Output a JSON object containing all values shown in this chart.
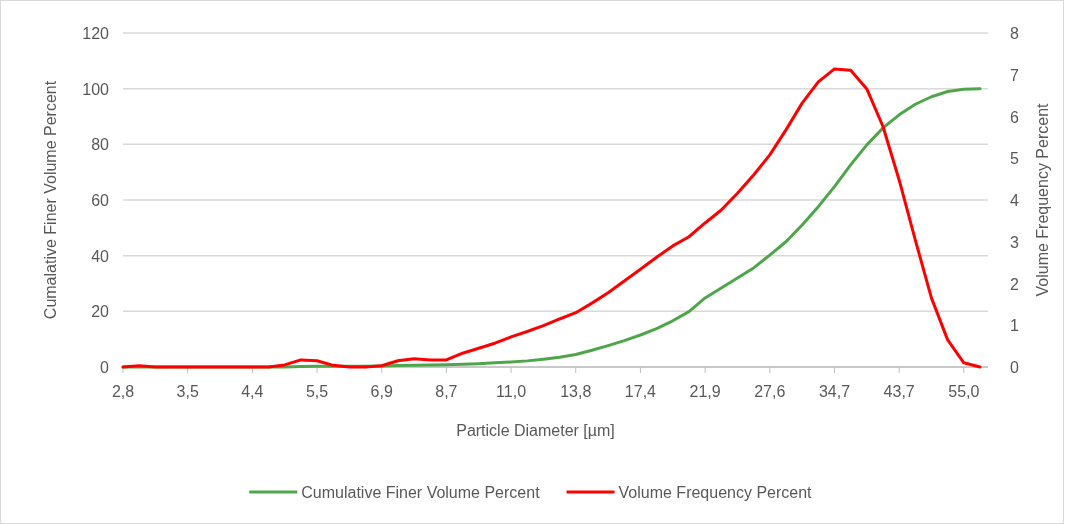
{
  "chart_data": {
    "type": "line",
    "xlabel": "Particle Diameter [µm]",
    "ylabel": "Cumalative Finer Volume Percent",
    "y2label": "Volume Frequency Percent",
    "categories": [
      "2,8",
      null,
      null,
      null,
      "3,5",
      null,
      null,
      null,
      "4,4",
      null,
      null,
      null,
      "5,5",
      null,
      null,
      null,
      "6,9",
      null,
      null,
      null,
      "8,7",
      null,
      null,
      null,
      "11,0",
      null,
      null,
      null,
      "13,8",
      null,
      null,
      null,
      "17,4",
      null,
      null,
      null,
      "21,9",
      null,
      null,
      null,
      "27,6",
      null,
      null,
      null,
      "34,7",
      null,
      null,
      null,
      "43,7",
      null,
      null,
      null,
      "55,0",
      null
    ],
    "series": [
      {
        "name": "Cumulative Finer Volume Percent",
        "color": "#4ea64a",
        "values": [
          0,
          0,
          0,
          0,
          0,
          0,
          0,
          0,
          0,
          0,
          0,
          0.2,
          0.3,
          0.3,
          0.3,
          0.3,
          0.4,
          0.5,
          0.6,
          0.7,
          0.8,
          1.0,
          1.2,
          1.5,
          1.8,
          2.2,
          2.8,
          3.5,
          4.5,
          6,
          7.7,
          9.5,
          11.5,
          13.8,
          16.6,
          19.9,
          24.8,
          28.4,
          32,
          35.6,
          40.2,
          45,
          51,
          57.6,
          64.8,
          72.6,
          79.8,
          85.9,
          90.6,
          94.4,
          97.1,
          99,
          99.8,
          100
        ]
      },
      {
        "name": "Volume Frequency Percent",
        "color": "#ff0000",
        "axis": "y2",
        "values": [
          0,
          0.03,
          0,
          0,
          0,
          0,
          0,
          0,
          0,
          0,
          0.05,
          0.17,
          0.15,
          0.04,
          0,
          0,
          0.03,
          0.15,
          0.2,
          0.17,
          0.17,
          0.33,
          0.45,
          0.57,
          0.72,
          0.85,
          0.99,
          1.15,
          1.3,
          1.53,
          1.78,
          2.06,
          2.34,
          2.63,
          2.9,
          3.12,
          3.45,
          3.76,
          4.16,
          4.6,
          5.08,
          5.68,
          6.32,
          6.83,
          7.14,
          7.11,
          6.66,
          5.76,
          4.48,
          3.04,
          1.65,
          0.65,
          0.1,
          0
        ]
      }
    ],
    "ylim": [
      0,
      120
    ],
    "yticks": [
      0,
      20,
      40,
      60,
      80,
      100,
      120
    ],
    "y2lim": [
      0,
      8
    ],
    "y2ticks": [
      0,
      1,
      2,
      3,
      4,
      5,
      6,
      7,
      8
    ],
    "grid": "y",
    "legend": "bottom"
  }
}
